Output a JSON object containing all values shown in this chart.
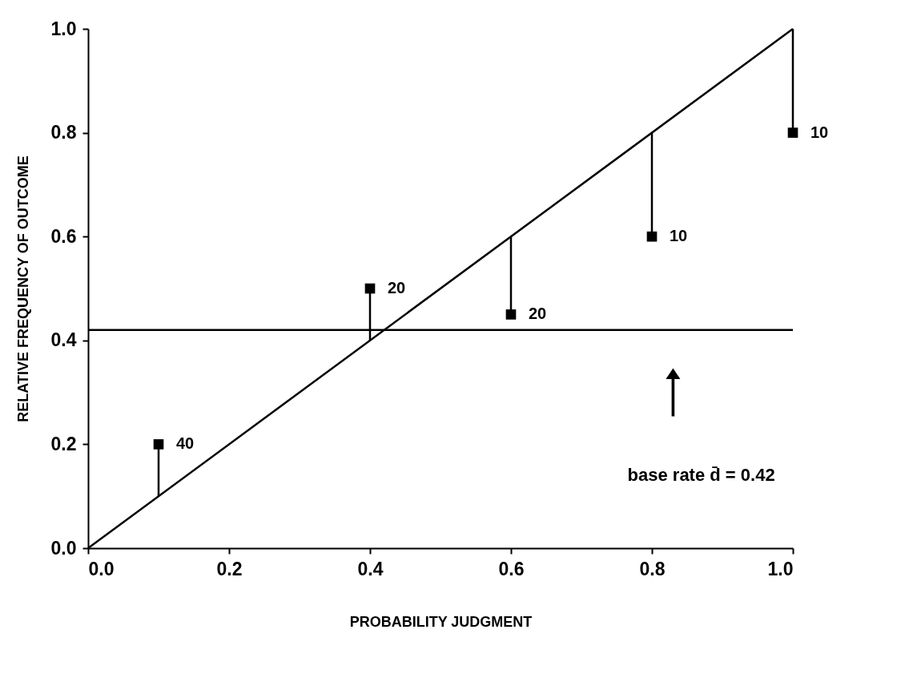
{
  "chart_data": {
    "type": "scatter",
    "xlabel": "PROBABILITY JUDGMENT",
    "ylabel": "RELATIVE FREQUENCY OF OUTCOME",
    "xlim": [
      0,
      1
    ],
    "ylim": [
      0,
      1
    ],
    "xticks": [
      {
        "value": 0,
        "label": "0.0"
      },
      {
        "value": 0.2,
        "label": "0.2"
      },
      {
        "value": 0.4,
        "label": "0.4"
      },
      {
        "value": 0.6,
        "label": "0.6"
      },
      {
        "value": 0.8,
        "label": "0.8"
      },
      {
        "value": 1,
        "label": "1.0"
      }
    ],
    "yticks": [
      {
        "value": 0,
        "label": "0.0"
      },
      {
        "value": 0.2,
        "label": "0.2"
      },
      {
        "value": 0.4,
        "label": "0.4"
      },
      {
        "value": 0.6,
        "label": "0.6"
      },
      {
        "value": 0.8,
        "label": "0.8"
      },
      {
        "value": 1,
        "label": "1.0"
      }
    ],
    "grid": false,
    "series": [
      {
        "color": "#000000",
        "marker": "square",
        "x": [
          0.1,
          0.4,
          0.6,
          0.8,
          1.0
        ],
        "values": [
          0.2,
          0.5,
          0.45,
          0.6,
          0.8
        ],
        "errors": [
          [
            0.1,
            0.2
          ],
          [
            0.4,
            0.5
          ],
          [
            0.45,
            0.6
          ],
          [
            0.6,
            0.8
          ],
          [
            0.8,
            1.0
          ]
        ]
      },
      {
        "type": "line",
        "color": "#000000",
        "marker": "none",
        "line_style": "solid",
        "x": [
          0,
          1
        ],
        "values": [
          0,
          1
        ]
      }
    ],
    "ref_lines": [
      {
        "axis": "y",
        "value": 0.42,
        "label": "base rate d̄ = 0.42",
        "color": "#000000"
      }
    ],
    "annotations": [
      {
        "text": "40",
        "x": 0.1,
        "y": 0.2
      },
      {
        "text": "20",
        "x": 0.4,
        "y": 0.5
      },
      {
        "text": "20",
        "x": 0.6,
        "y": 0.45
      },
      {
        "text": "10",
        "x": 0.8,
        "y": 0.6
      },
      {
        "text": "10",
        "x": 1.0,
        "y": 0.8
      }
    ]
  }
}
